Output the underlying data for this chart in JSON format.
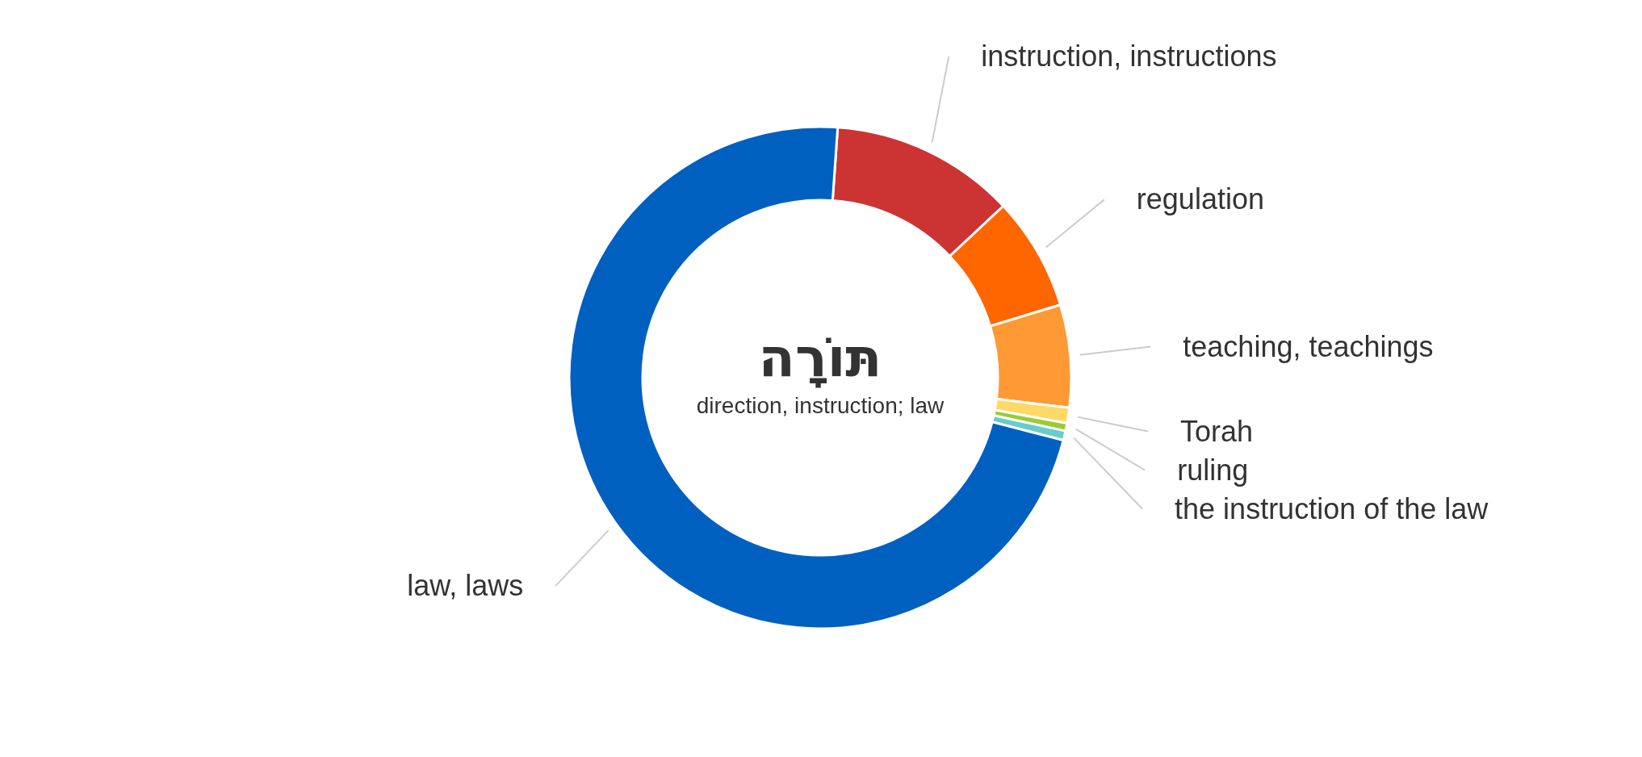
{
  "chart_data": {
    "type": "donut",
    "title": "תּוֹרָה",
    "subtitle": "direction, instruction; law",
    "categories": [
      "instruction, instructions",
      "regulation",
      "teaching, teachings",
      "Torah",
      "ruling",
      "the instruction of the law",
      "law, laws"
    ],
    "values": [
      11.9,
      7.3,
      6.6,
      1.0,
      0.5,
      0.6,
      72.1
    ],
    "colors": [
      "#cc3333",
      "#ff6600",
      "#ff9933",
      "#ffd966",
      "#99cc33",
      "#66cccc",
      "#0060c0"
    ]
  }
}
